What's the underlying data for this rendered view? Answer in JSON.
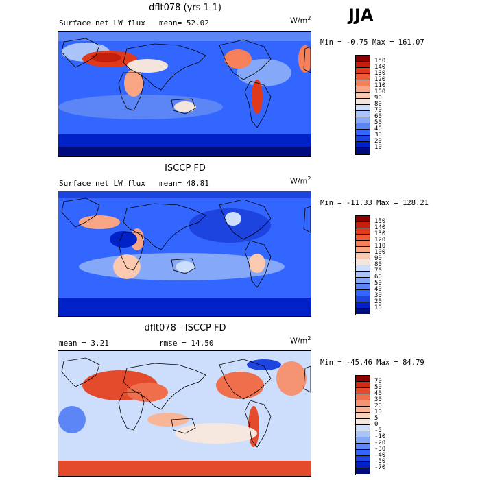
{
  "season": "JJA",
  "colors": {
    "abs_scale": [
      "#000c7d",
      "#0020c8",
      "#1e44e0",
      "#3366ff",
      "#5c86f5",
      "#86a8f8",
      "#aac4fa",
      "#cdddfc",
      "#f3e5dc",
      "#fbc8b0",
      "#f9a583",
      "#f5805a",
      "#ef5a36",
      "#e0391c",
      "#c41e0c",
      "#8b0000"
    ],
    "diff_scale": [
      "#000c7d",
      "#0020c8",
      "#1e44e0",
      "#3366ff",
      "#5c86f5",
      "#86a8f8",
      "#aac4fa",
      "#cdddfc",
      "#f6e7df",
      "#fbd2bb",
      "#f9b597",
      "#f59473",
      "#ef6e4c",
      "#e44b2c",
      "#cc2b14",
      "#8b0000"
    ]
  },
  "chart_data": [
    {
      "type": "heatmap",
      "title": "dflt078 (yrs 1-1)",
      "field_label": "Surface net LW flux",
      "stat": "mean=  52.02",
      "units": "W/m",
      "units_sup": "2",
      "minmax": "Min =  -0.75 Max = 161.07",
      "mean": 52.02,
      "min": -0.75,
      "max": 161.07,
      "colorbar_levels": [
        "10",
        "20",
        "30",
        "40",
        "50",
        "60",
        "70",
        "80",
        "90",
        "100",
        "110",
        "120",
        "130",
        "140",
        "150"
      ]
    },
    {
      "type": "heatmap",
      "title": "ISCCP FD",
      "field_label": "Surface net LW flux",
      "stat": "mean=  48.81",
      "units": "W/m",
      "units_sup": "2",
      "minmax": "Min = -11.33 Max = 128.21",
      "mean": 48.81,
      "min": -11.33,
      "max": 128.21,
      "colorbar_levels": [
        "10",
        "20",
        "30",
        "40",
        "50",
        "60",
        "70",
        "80",
        "90",
        "100",
        "110",
        "120",
        "130",
        "140",
        "150"
      ]
    },
    {
      "type": "heatmap",
      "title": "dflt078 - ISCCP FD",
      "field_label": "mean =    3.21",
      "stat": "rmse =   14.50",
      "units": "W/m",
      "units_sup": "2",
      "minmax": "Min = -45.46 Max =  84.79",
      "mean": 3.21,
      "rmse": 14.5,
      "min": -45.46,
      "max": 84.79,
      "colorbar_levels": [
        "-70",
        "-50",
        "-40",
        "-30",
        "-20",
        "-10",
        "-5",
        "0",
        "5",
        "10",
        "20",
        "30",
        "40",
        "50",
        "70"
      ]
    }
  ]
}
